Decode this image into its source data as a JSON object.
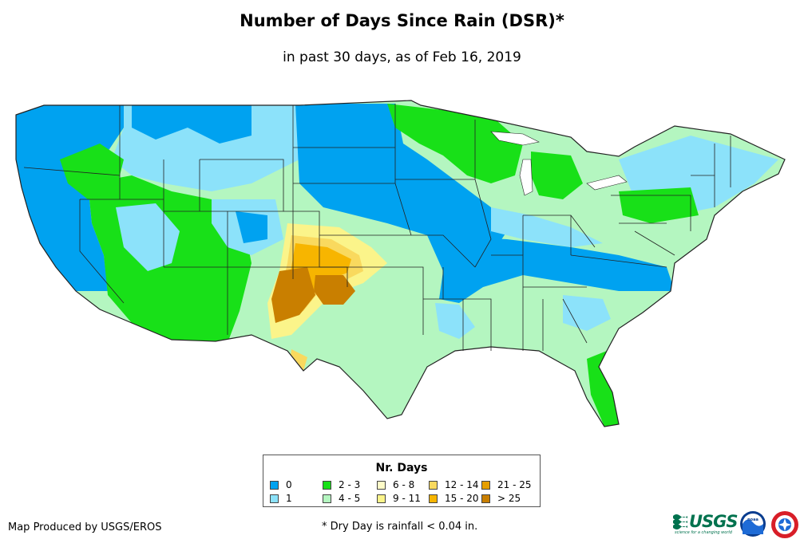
{
  "title": "Number of Days Since Rain (DSR)*",
  "subtitle": "in past 30 days, as of Feb 16, 2019",
  "legend": {
    "title": "Nr. Days",
    "items": [
      {
        "label": "0",
        "color": "#00a2f0"
      },
      {
        "label": "1",
        "color": "#8ce2fa"
      },
      {
        "label": "2 - 3",
        "color": "#18e018"
      },
      {
        "label": "4 - 5",
        "color": "#b4f6c0"
      },
      {
        "label": "6 - 8",
        "color": "#fffcc8"
      },
      {
        "label": "9 - 11",
        "color": "#fbf48a"
      },
      {
        "label": "12 - 14",
        "color": "#f9d95e"
      },
      {
        "label": "15 - 20",
        "color": "#f7b500"
      },
      {
        "label": "21 - 25",
        "color": "#e69f00"
      },
      {
        "label": "> 25",
        "color": "#c97f00"
      }
    ]
  },
  "credit": "Map Produced by USGS/EROS",
  "footnote": "* Dry Day is rainfall < 0.04 in.",
  "logos": {
    "usgs_text": "USGS",
    "usgs_tagline": "science for a changing world",
    "noaa_text": "noaa"
  }
}
